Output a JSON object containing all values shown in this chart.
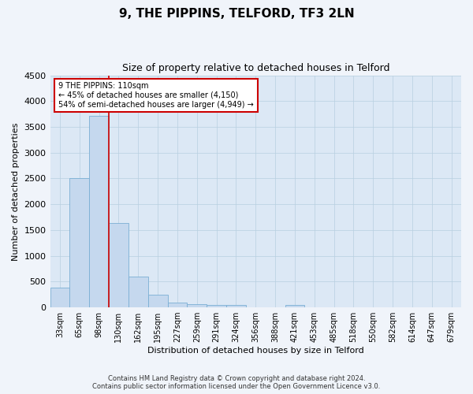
{
  "title": "9, THE PIPPINS, TELFORD, TF3 2LN",
  "subtitle": "Size of property relative to detached houses in Telford",
  "xlabel": "Distribution of detached houses by size in Telford",
  "ylabel": "Number of detached properties",
  "categories": [
    "33sqm",
    "65sqm",
    "98sqm",
    "130sqm",
    "162sqm",
    "195sqm",
    "227sqm",
    "259sqm",
    "291sqm",
    "324sqm",
    "356sqm",
    "388sqm",
    "421sqm",
    "453sqm",
    "485sqm",
    "518sqm",
    "550sqm",
    "582sqm",
    "614sqm",
    "647sqm",
    "679sqm"
  ],
  "values": [
    380,
    2500,
    3720,
    1640,
    600,
    250,
    100,
    60,
    50,
    40,
    0,
    0,
    50,
    0,
    0,
    0,
    0,
    0,
    0,
    0,
    0
  ],
  "bar_color": "#c5d8ee",
  "bar_edge_color": "#7aafd4",
  "vline_color": "#cc0000",
  "vline_x": 2.5,
  "ylim_max": 4500,
  "yticks": [
    0,
    500,
    1000,
    1500,
    2000,
    2500,
    3000,
    3500,
    4000,
    4500
  ],
  "annotation_line1": "9 THE PIPPINS: 110sqm",
  "annotation_line2": "← 45% of detached houses are smaller (4,150)",
  "annotation_line3": "54% of semi-detached houses are larger (4,949) →",
  "annotation_box_edgecolor": "#cc0000",
  "footer_line1": "Contains HM Land Registry data © Crown copyright and database right 2024.",
  "footer_line2": "Contains public sector information licensed under the Open Government Licence v3.0.",
  "plot_bg_color": "#dce8f5",
  "fig_bg_color": "#f0f4fa",
  "grid_color": "#b8cfe0",
  "title_fontsize": 11,
  "subtitle_fontsize": 9,
  "ylabel_fontsize": 8,
  "xlabel_fontsize": 8,
  "tick_fontsize": 7,
  "annotation_fontsize": 7,
  "footer_fontsize": 6
}
